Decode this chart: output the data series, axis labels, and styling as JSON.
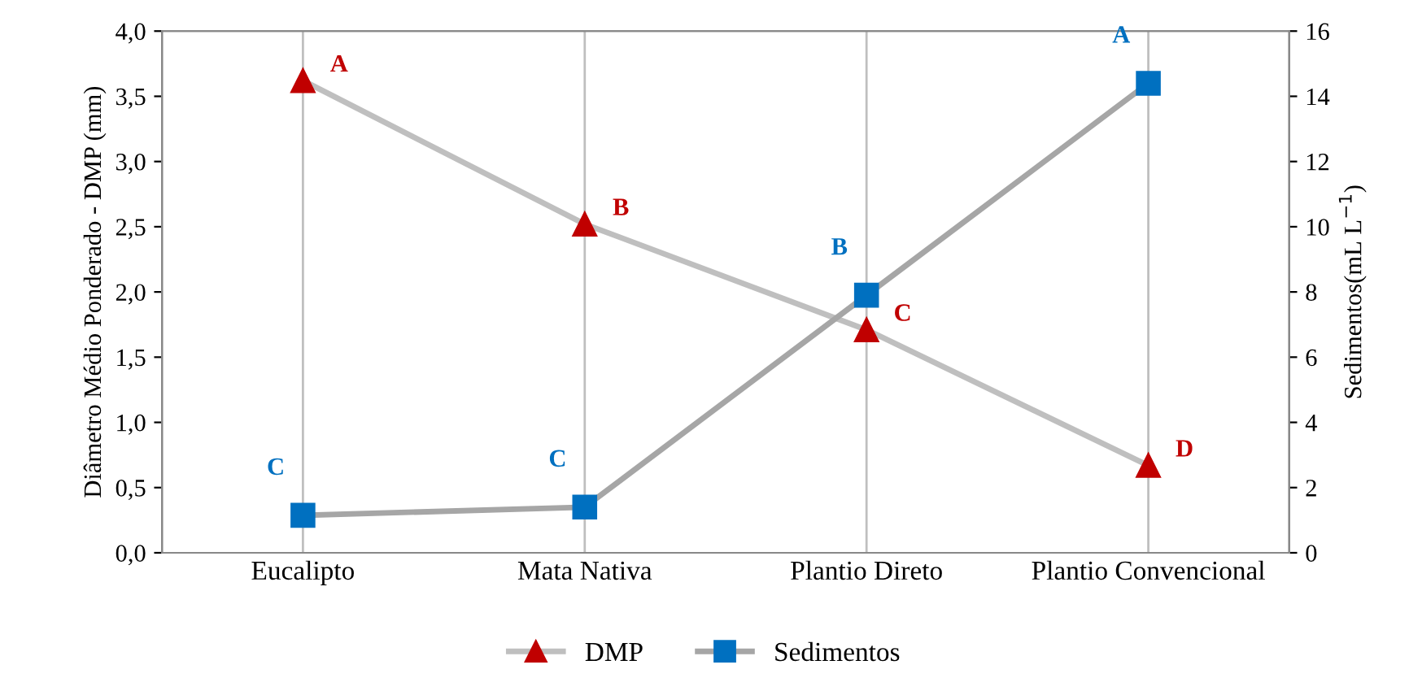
{
  "chart_data": {
    "type": "line",
    "categories": [
      "Eucalipto",
      "Mata Nativa",
      "Plantio Direto",
      "Plantio Convencional"
    ],
    "ylabel": "Diâmetro Médio Ponderado - DMP (mm)",
    "y2label": "Sedimentos(mL L$^{−1}$)",
    "series": [
      {
        "name": "DMP",
        "color": "#c00000",
        "marker": "triangle",
        "values": [
          3.62,
          2.52,
          1.71,
          0.67
        ],
        "value_labels": [
          "A",
          "B",
          "C",
          "D"
        ]
      },
      {
        "name": "Sedimentos",
        "color": "#0070c0",
        "marker": "square",
        "axis": "y2",
        "values": [
          1.15,
          1.4,
          7.9,
          14.4
        ],
        "value_labels": [
          "C",
          "C",
          "B",
          "A"
        ]
      }
    ],
    "ylim": [
      0,
      4
    ],
    "yticks": [
      {
        "value": 0,
        "label": "0,0"
      },
      {
        "value": 0.5,
        "label": "0,5"
      },
      {
        "value": 1,
        "label": "1,0"
      },
      {
        "value": 1.5,
        "label": "1,5"
      },
      {
        "value": 2,
        "label": "2,0"
      },
      {
        "value": 2.5,
        "label": "2,5"
      },
      {
        "value": 3,
        "label": "3,0"
      },
      {
        "value": 3.5,
        "label": "3,5"
      },
      {
        "value": 4,
        "label": "4,0"
      }
    ],
    "y2lim": [
      0,
      16
    ],
    "y2ticks": [
      0,
      2,
      4,
      6,
      8,
      10,
      12,
      14,
      16
    ],
    "grid": "x",
    "legend": "bottom"
  }
}
